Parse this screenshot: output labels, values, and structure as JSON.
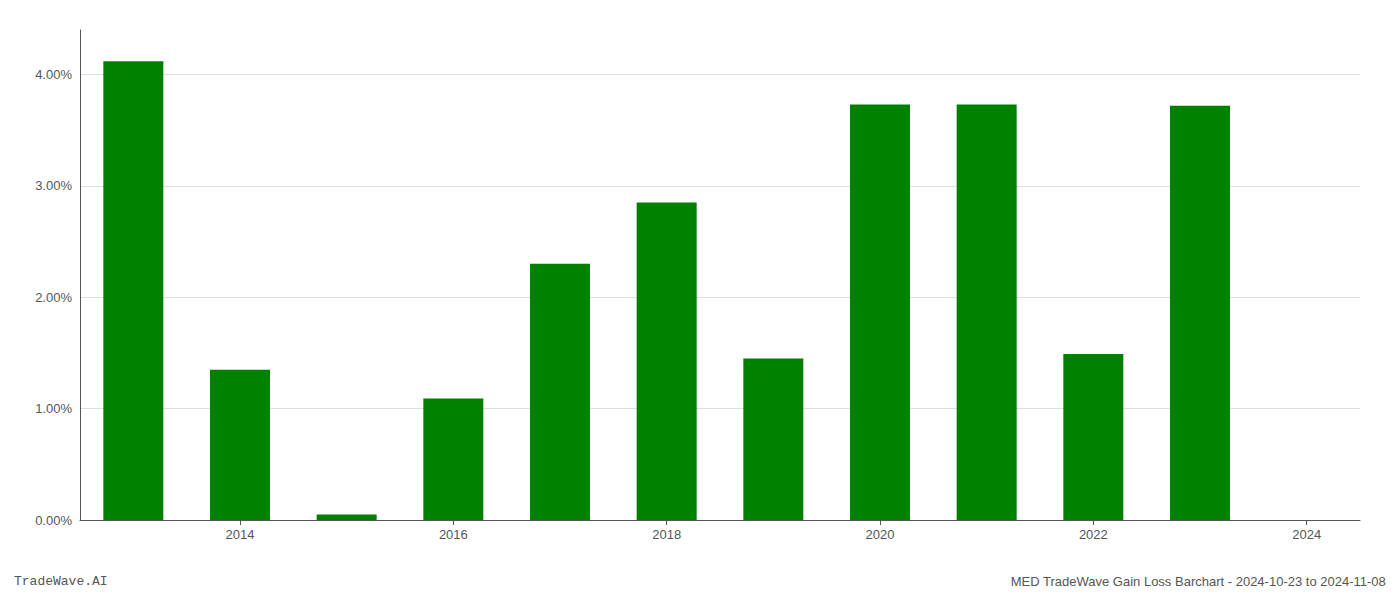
{
  "chart_data": {
    "type": "bar",
    "x": [
      2013,
      2014,
      2015,
      2016,
      2017,
      2018,
      2019,
      2020,
      2021,
      2022,
      2023
    ],
    "values": [
      0.0412,
      0.0135,
      0.0005,
      0.0109,
      0.023,
      0.0285,
      0.0145,
      0.0373,
      0.0373,
      0.0149,
      0.0372
    ],
    "color": "#008000",
    "xlim": [
      2012.5,
      2024.5
    ],
    "xticks": [
      2014,
      2016,
      2018,
      2020,
      2022,
      2024
    ],
    "ylim": [
      0,
      0.044
    ],
    "yticks": [
      {
        "value": 0,
        "label": "0.00%"
      },
      {
        "value": 0.01,
        "label": "1.00%"
      },
      {
        "value": 0.02,
        "label": "2.00%"
      },
      {
        "value": 0.03,
        "label": "3.00%"
      },
      {
        "value": 0.04,
        "label": "4.00%"
      }
    ],
    "grid": "y",
    "annotations": [
      "TradeWave.AI",
      "MED TradeWave Gain Loss Barchart - 2024-10-23 to 2024-11-08"
    ]
  }
}
